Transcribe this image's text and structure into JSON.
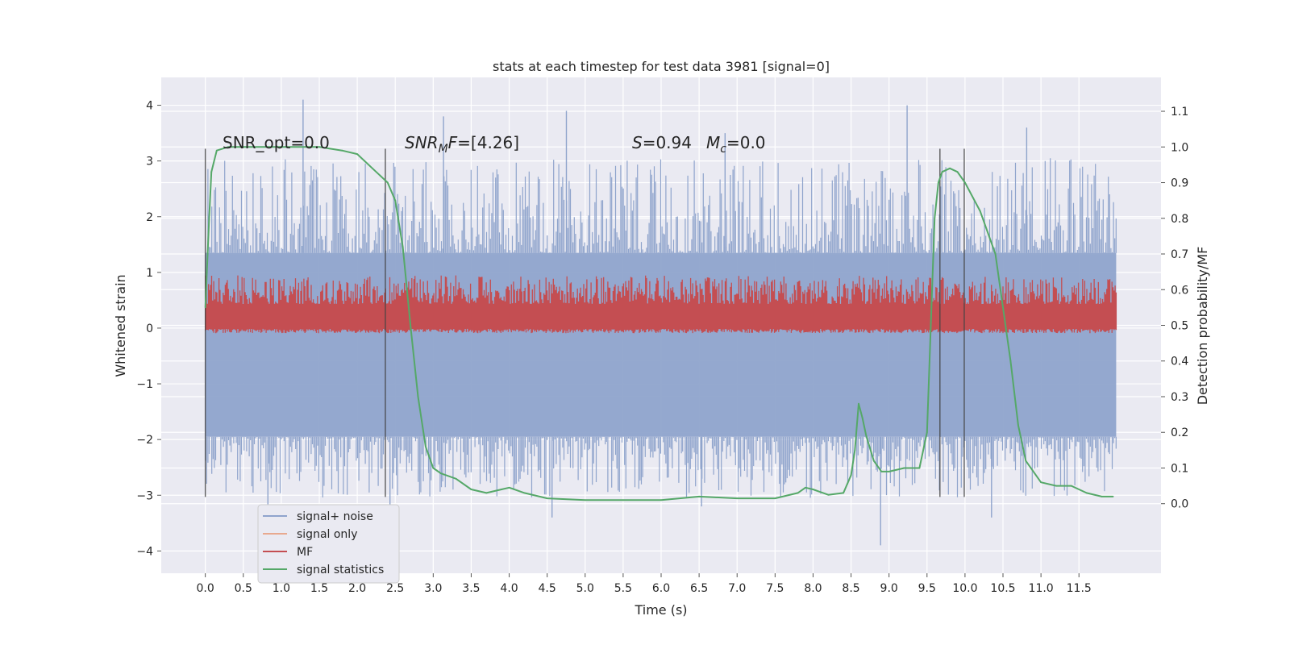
{
  "chart_data": {
    "type": "line",
    "title": "stats at each timestep for test data 3981 [signal=0]",
    "xlabel": "Time (s)",
    "ylabel": "Whitened strain",
    "y2label": "Detection probability/MF",
    "xlim": [
      -0.58,
      12.58
    ],
    "ylim": [
      -4.4,
      4.5
    ],
    "y2lim": [
      -0.195,
      1.195
    ],
    "xticks": [
      "0.0",
      "0.5",
      "1.0",
      "1.5",
      "2.0",
      "2.5",
      "3.0",
      "3.5",
      "4.0",
      "4.5",
      "5.0",
      "5.5",
      "6.0",
      "6.5",
      "7.0",
      "7.5",
      "8.0",
      "8.5",
      "9.0",
      "9.5",
      "10.0",
      "10.5",
      "11.0",
      "11.5"
    ],
    "yticks": [
      "−4",
      "−3",
      "−2",
      "−1",
      "0",
      "1",
      "2",
      "3",
      "4"
    ],
    "y2ticks": [
      "0.0",
      "0.1",
      "0.2",
      "0.3",
      "0.4",
      "0.5",
      "0.6",
      "0.7",
      "0.8",
      "0.9",
      "1.0",
      "1.1"
    ],
    "grid": true,
    "legend_position": "lower-left",
    "annotations": {
      "snr_opt": "SNR_opt=0.0",
      "snr_mf_prefix": "SNR",
      "snr_mf_sub": "M",
      "snr_mf_mid": "F",
      "snr_mf_value": "=[4.26]",
      "s_label": "S",
      "s_value": "=0.94",
      "mc_label": "M",
      "mc_sub": "c",
      "mc_value": "=0.0"
    },
    "vlines": [
      0.0,
      2.37,
      9.67,
      9.99
    ],
    "vline_range": [
      -3.03,
      3.22
    ],
    "series": [
      {
        "name": "signal+ noise",
        "color": "#8fa4cc",
        "axis": "left",
        "x_range": [
          0.0,
          11.99
        ],
        "envelope": {
          "core_upper": 1.35,
          "core_lower": -1.95,
          "peak_upper": [
            4.1,
            3.8,
            3.9,
            3.5,
            4.0,
            3.6
          ],
          "peak_lower": [
            -3.3,
            -3.6,
            -3.4,
            -3.2,
            -3.9,
            -3.4
          ]
        }
      },
      {
        "name": "signal only",
        "color": "#e8a98f",
        "axis": "right",
        "values": []
      },
      {
        "name": "MF",
        "color": "#c44e52",
        "axis": "right",
        "x_range": [
          0.0,
          11.99
        ],
        "envelope": {
          "lower": 0.49,
          "upper": 0.6,
          "peak_upper": 0.64
        }
      },
      {
        "name": "signal statistics",
        "color": "#55a868",
        "axis": "right",
        "x": [
          0.0,
          0.05,
          0.08,
          0.15,
          0.3,
          0.6,
          1.0,
          1.5,
          1.8,
          2.0,
          2.2,
          2.3,
          2.4,
          2.5,
          2.6,
          2.7,
          2.8,
          2.9,
          3.0,
          3.1,
          3.3,
          3.5,
          3.7,
          3.9,
          4.0,
          4.2,
          4.5,
          5.0,
          5.5,
          6.0,
          6.5,
          7.0,
          7.5,
          7.8,
          7.9,
          8.0,
          8.2,
          8.4,
          8.5,
          8.55,
          8.6,
          8.65,
          8.7,
          8.8,
          8.9,
          9.0,
          9.2,
          9.4,
          9.5,
          9.55,
          9.6,
          9.65,
          9.7,
          9.8,
          9.9,
          10.0,
          10.2,
          10.4,
          10.5,
          10.6,
          10.7,
          10.8,
          11.0,
          11.2,
          11.4,
          11.6,
          11.8,
          11.95
        ],
        "values": [
          0.55,
          0.8,
          0.93,
          0.99,
          1.0,
          1.0,
          1.0,
          1.0,
          0.99,
          0.98,
          0.94,
          0.92,
          0.9,
          0.85,
          0.72,
          0.5,
          0.3,
          0.16,
          0.1,
          0.085,
          0.07,
          0.04,
          0.03,
          0.04,
          0.045,
          0.03,
          0.015,
          0.01,
          0.01,
          0.01,
          0.02,
          0.015,
          0.015,
          0.03,
          0.045,
          0.04,
          0.025,
          0.03,
          0.08,
          0.15,
          0.28,
          0.24,
          0.19,
          0.12,
          0.09,
          0.09,
          0.1,
          0.1,
          0.2,
          0.5,
          0.8,
          0.9,
          0.93,
          0.94,
          0.93,
          0.9,
          0.82,
          0.7,
          0.55,
          0.4,
          0.22,
          0.12,
          0.06,
          0.05,
          0.05,
          0.03,
          0.02,
          0.02
        ]
      }
    ]
  }
}
